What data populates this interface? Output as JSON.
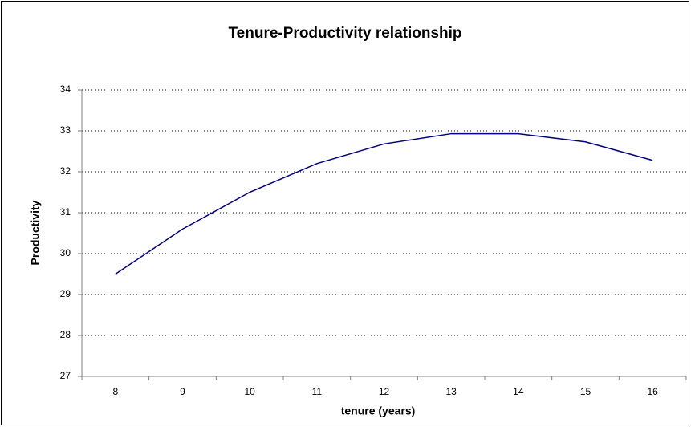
{
  "chart_data": {
    "type": "line",
    "title": "Tenure-Productivity relationship",
    "x_label": "tenure (years)",
    "y_label": "Productivity",
    "categories": [
      "8",
      "9",
      "10",
      "11",
      "12",
      "13",
      "14",
      "15",
      "16"
    ],
    "values": [
      29.5,
      30.6,
      31.5,
      32.2,
      32.68,
      32.93,
      32.93,
      32.73,
      32.28
    ],
    "color": "#000080",
    "ylim": [
      27,
      34
    ],
    "yticks": [
      27,
      28,
      29,
      30,
      31,
      32,
      33,
      34
    ],
    "grid": true
  }
}
